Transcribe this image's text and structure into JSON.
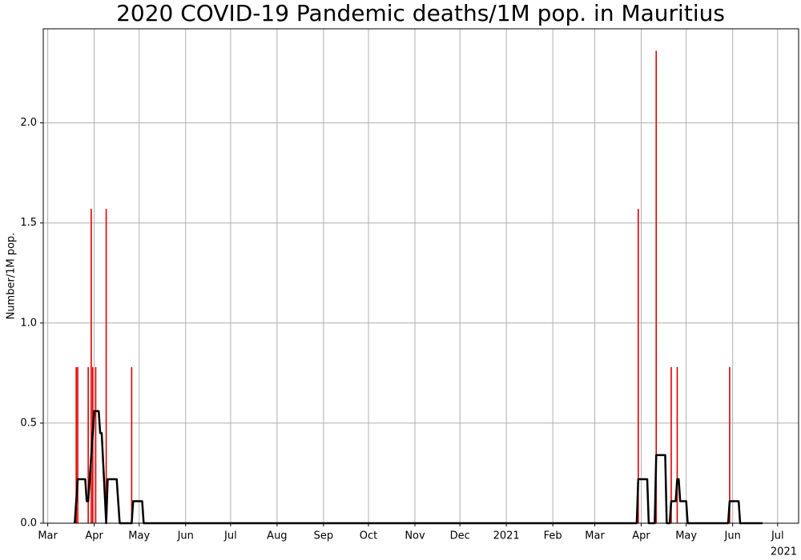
{
  "chart_data": {
    "type": "bar_line",
    "title": "2020 COVID-19 Pandemic deaths/1M pop. in Mauritius",
    "y_label": "Number/1M pop.",
    "x_offset_label": "2021",
    "xlim": [
      "2020-02-27",
      "2021-07-15"
    ],
    "ylim": [
      0,
      2.47
    ],
    "xticks": [
      {
        "value": "2020-03-01",
        "label": "Mar"
      },
      {
        "value": "2020-04-01",
        "label": "Apr"
      },
      {
        "value": "2020-05-01",
        "label": "May"
      },
      {
        "value": "2020-06-01",
        "label": "Jun"
      },
      {
        "value": "2020-07-01",
        "label": "Jul"
      },
      {
        "value": "2020-08-01",
        "label": "Aug"
      },
      {
        "value": "2020-09-01",
        "label": "Sep"
      },
      {
        "value": "2020-10-01",
        "label": "Oct"
      },
      {
        "value": "2020-11-01",
        "label": "Nov"
      },
      {
        "value": "2020-12-01",
        "label": "Dec"
      },
      {
        "value": "2021-01-01",
        "label": "2021"
      },
      {
        "value": "2021-02-01",
        "label": "Feb"
      },
      {
        "value": "2021-03-01",
        "label": "Mar"
      },
      {
        "value": "2021-04-01",
        "label": "Apr"
      },
      {
        "value": "2021-05-01",
        "label": "May"
      },
      {
        "value": "2021-06-01",
        "label": "Jun"
      },
      {
        "value": "2021-07-01",
        "label": "Jul"
      }
    ],
    "yticks": [
      {
        "value": 0,
        "label": "0.0"
      },
      0.5,
      {
        "value": 1,
        "label": "1.0"
      },
      1.5,
      {
        "value": 2,
        "label": "2.0"
      }
    ],
    "grid": true,
    "bars": {
      "color": "#e00000",
      "x": [
        "2020-03-20",
        "2020-03-21",
        "2020-03-28",
        "2020-03-30",
        "2020-03-31",
        "2020-04-02",
        "2020-04-09",
        "2020-04-26",
        "2021-03-30",
        "2021-04-11",
        "2021-04-21",
        "2021-04-25",
        "2021-05-30"
      ],
      "values": [
        0.78,
        0.78,
        0.78,
        1.57,
        0.78,
        0.78,
        1.57,
        0.78,
        1.57,
        2.36,
        0.78,
        0.78,
        0.78
      ]
    },
    "line": {
      "color": "#000000",
      "x": [
        "2020-03-19",
        "2020-03-21",
        "2020-03-26",
        "2020-03-27",
        "2020-03-28",
        "2020-04-01",
        "2020-04-04",
        "2020-04-05",
        "2020-04-06",
        "2020-04-09",
        "2020-04-10",
        "2020-04-16",
        "2020-04-18",
        "2020-04-26",
        "2020-04-27",
        "2020-05-03",
        "2020-05-04",
        "2021-03-29",
        "2021-03-30",
        "2021-04-05",
        "2021-04-06",
        "2021-04-10",
        "2021-04-11",
        "2021-04-17",
        "2021-04-18",
        "2021-04-20",
        "2021-04-21",
        "2021-04-24",
        "2021-04-25",
        "2021-04-26",
        "2021-04-27",
        "2021-05-01",
        "2021-05-02",
        "2021-05-29",
        "2021-05-30",
        "2021-06-05",
        "2021-06-06",
        "2021-06-21"
      ],
      "values": [
        0,
        0.22,
        0.22,
        0.11,
        0.11,
        0.56,
        0.56,
        0.45,
        0.45,
        0,
        0.22,
        0.22,
        0,
        0,
        0.11,
        0.11,
        0,
        0,
        0.22,
        0.22,
        0,
        0,
        0.34,
        0.34,
        0,
        0,
        0.11,
        0.11,
        0.22,
        0.22,
        0.11,
        0.11,
        0,
        0,
        0.11,
        0.11,
        0,
        0
      ]
    }
  }
}
